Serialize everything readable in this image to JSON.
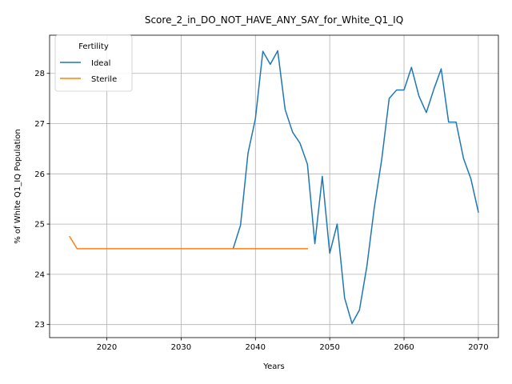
{
  "chart_data": {
    "type": "line",
    "title": "Score_2_in_DO_NOT_HAVE_ANY_SAY_for_White_Q1_IQ",
    "xlabel": "Years",
    "ylabel": "% of White Q1_IQ Population",
    "xlim": [
      2012.3,
      2072.7
    ],
    "ylim": [
      22.74,
      28.76
    ],
    "xticks": [
      2020,
      2030,
      2040,
      2050,
      2060,
      2070
    ],
    "yticks": [
      23,
      24,
      25,
      26,
      27,
      28
    ],
    "grid": true,
    "legend": {
      "title": "Fertility",
      "placement": "top-left"
    },
    "series": [
      {
        "name": "Ideal",
        "color": "#1f77b4",
        "x": [
          2037,
          2038,
          2039,
          2040,
          2041,
          2042,
          2043,
          2044,
          2045,
          2046,
          2047,
          2048,
          2049,
          2050,
          2051,
          2052,
          2053,
          2054,
          2055,
          2056,
          2057,
          2058,
          2059,
          2060,
          2061,
          2062,
          2063,
          2064,
          2065,
          2066,
          2067,
          2068,
          2069,
          2070
        ],
        "y": [
          24.51,
          24.98,
          26.41,
          27.1,
          28.44,
          28.18,
          28.45,
          27.28,
          26.83,
          26.61,
          26.19,
          24.61,
          25.95,
          24.42,
          25.0,
          23.53,
          23.02,
          23.29,
          24.16,
          25.33,
          26.29,
          27.5,
          27.67,
          27.67,
          28.12,
          27.55,
          27.22,
          27.68,
          28.09,
          27.03,
          27.03,
          26.31,
          25.9,
          25.24
        ]
      },
      {
        "name": "Sterile",
        "color": "#ff7f0e",
        "x": [
          2015,
          2016,
          2017,
          2018,
          2019,
          2020,
          2021,
          2022,
          2023,
          2024,
          2025,
          2026,
          2027,
          2028,
          2029,
          2030,
          2031,
          2032,
          2033,
          2034,
          2035,
          2036,
          2037,
          2038,
          2039,
          2040,
          2041,
          2042,
          2043,
          2044,
          2045,
          2046,
          2047
        ],
        "y": [
          24.75,
          24.51,
          24.51,
          24.51,
          24.51,
          24.51,
          24.51,
          24.51,
          24.51,
          24.51,
          24.51,
          24.51,
          24.51,
          24.51,
          24.51,
          24.51,
          24.51,
          24.51,
          24.51,
          24.51,
          24.51,
          24.51,
          24.51,
          24.51,
          24.51,
          24.51,
          24.51,
          24.51,
          24.51,
          24.51,
          24.51,
          24.51,
          24.51
        ]
      }
    ]
  }
}
